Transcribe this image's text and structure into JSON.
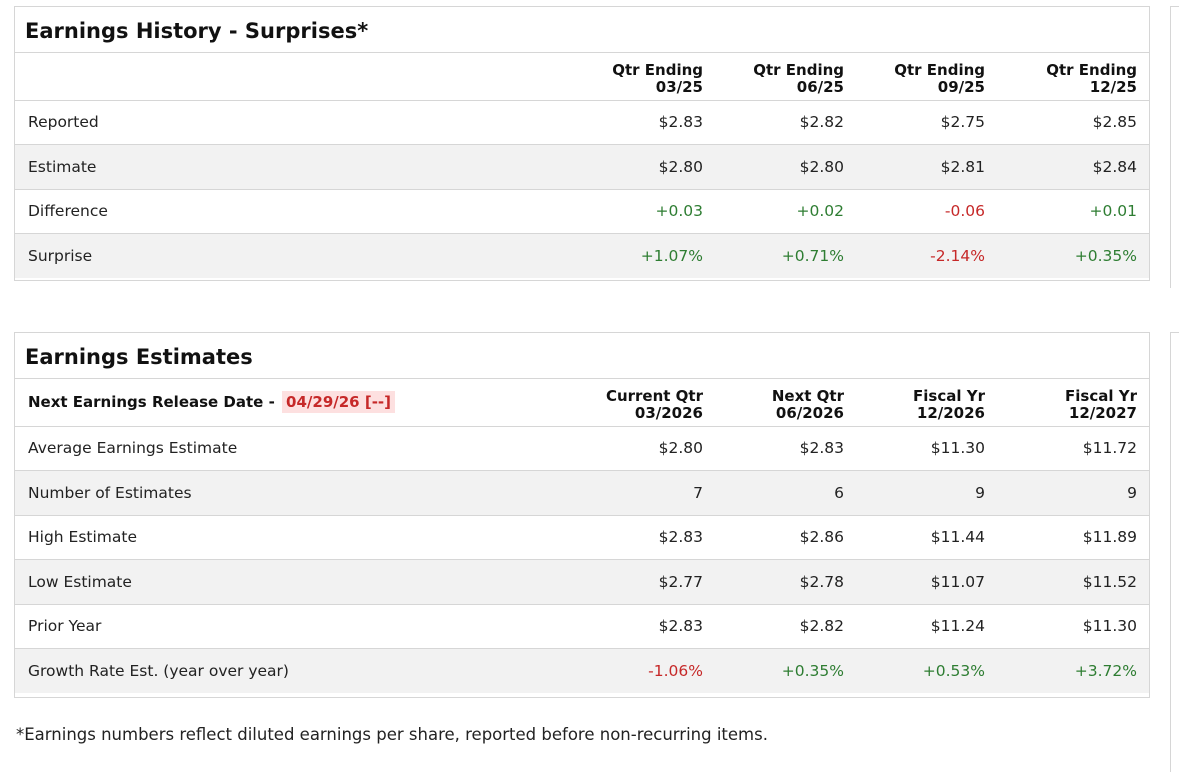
{
  "history": {
    "title": "Earnings History - Surprises*",
    "columns": [
      {
        "line1": "Qtr Ending",
        "line2": "03/25"
      },
      {
        "line1": "Qtr Ending",
        "line2": "06/25"
      },
      {
        "line1": "Qtr Ending",
        "line2": "09/25"
      },
      {
        "line1": "Qtr Ending",
        "line2": "12/25"
      }
    ],
    "rows": [
      {
        "label": "Reported",
        "values": [
          "$2.83",
          "$2.82",
          "$2.75",
          "$2.85"
        ]
      },
      {
        "label": "Estimate",
        "values": [
          "$2.80",
          "$2.80",
          "$2.81",
          "$2.84"
        ]
      },
      {
        "label": "Difference",
        "values": [
          "+0.03",
          "+0.02",
          "-0.06",
          "+0.01"
        ]
      },
      {
        "label": "Surprise",
        "values": [
          "+1.07%",
          "+0.71%",
          "-2.14%",
          "+0.35%"
        ]
      }
    ]
  },
  "estimates": {
    "title": "Earnings Estimates",
    "release_label": "Next Earnings Release Date -",
    "release_date": "04/29/26 [--]",
    "columns": [
      {
        "line1": "Current Qtr",
        "line2": "03/2026"
      },
      {
        "line1": "Next Qtr",
        "line2": "06/2026"
      },
      {
        "line1": "Fiscal Yr",
        "line2": "12/2026"
      },
      {
        "line1": "Fiscal Yr",
        "line2": "12/2027"
      }
    ],
    "rows": [
      {
        "label": "Average Earnings Estimate",
        "values": [
          "$2.80",
          "$2.83",
          "$11.30",
          "$11.72"
        ]
      },
      {
        "label": "Number of Estimates",
        "values": [
          "7",
          "6",
          "9",
          "9"
        ]
      },
      {
        "label": "High Estimate",
        "values": [
          "$2.83",
          "$2.86",
          "$11.44",
          "$11.89"
        ]
      },
      {
        "label": "Low Estimate",
        "values": [
          "$2.77",
          "$2.78",
          "$11.07",
          "$11.52"
        ]
      },
      {
        "label": "Prior Year",
        "values": [
          "$2.83",
          "$2.82",
          "$11.24",
          "$11.30"
        ]
      },
      {
        "label": "Growth Rate Est. (year over year)",
        "values": [
          "-1.06%",
          "+0.35%",
          "+0.53%",
          "+3.72%"
        ]
      }
    ]
  },
  "footnote": "*Earnings numbers reflect diluted earnings per share, reported before non-recurring items.",
  "colors": {
    "positive": "#2e7d32",
    "negative": "#c62828",
    "release_bg": "#fde0e0"
  }
}
